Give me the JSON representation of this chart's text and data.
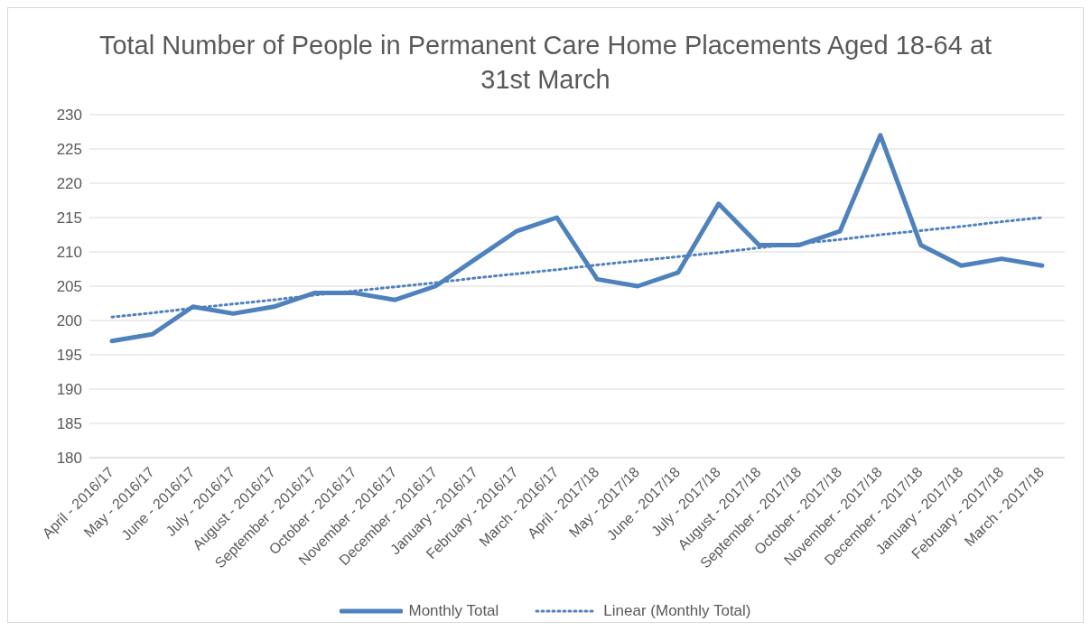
{
  "chart_data": {
    "type": "line",
    "title": "Total Number of People in Permanent Care Home Placements Aged 18-64 at 31st March",
    "categories": [
      "April - 2016/17",
      "May - 2016/17",
      "June - 2016/17",
      "July - 2016/17",
      "August - 2016/17",
      "September - 2016/17",
      "October - 2016/17",
      "November - 2016/17",
      "December - 2016/17",
      "January - 2016/17",
      "February - 2016/17",
      "March - 2016/17",
      "April - 2017/18",
      "May - 2017/18",
      "June - 2017/18",
      "July - 2017/18",
      "August - 2017/18",
      "September - 2017/18",
      "October - 2017/18",
      "November - 2017/18",
      "December - 2017/18",
      "January - 2017/18",
      "February - 2017/18",
      "March - 2017/18"
    ],
    "series": [
      {
        "name": "Monthly Total",
        "color": "#4f81bd",
        "line_style": "solid",
        "values": [
          197,
          198,
          202,
          201,
          202,
          204,
          204,
          203,
          205,
          209,
          213,
          215,
          206,
          205,
          207,
          217,
          211,
          211,
          213,
          227,
          211,
          208,
          209,
          208
        ]
      },
      {
        "name": "Linear (Monthly Total)",
        "color": "#4f81bd",
        "line_style": "dotted",
        "values": [
          200.5,
          201.1,
          201.8,
          202.4,
          203.0,
          203.7,
          204.3,
          204.9,
          205.5,
          206.2,
          206.8,
          207.4,
          208.1,
          208.7,
          209.3,
          209.9,
          210.6,
          211.2,
          211.8,
          212.5,
          213.1,
          213.7,
          214.4,
          215.0
        ]
      }
    ],
    "ylim": [
      180,
      230
    ],
    "yticks": [
      180,
      185,
      190,
      195,
      200,
      205,
      210,
      215,
      220,
      225,
      230
    ],
    "grid": "y",
    "legend": "bottom",
    "marker": "none"
  }
}
